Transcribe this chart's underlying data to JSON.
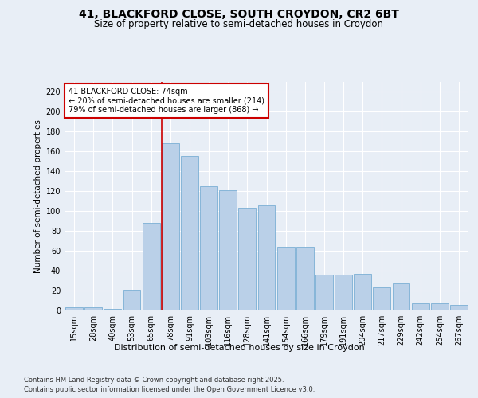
{
  "title1": "41, BLACKFORD CLOSE, SOUTH CROYDON, CR2 6BT",
  "title2": "Size of property relative to semi-detached houses in Croydon",
  "xlabel": "Distribution of semi-detached houses by size in Croydon",
  "ylabel": "Number of semi-detached properties",
  "categories": [
    "15sqm",
    "28sqm",
    "40sqm",
    "53sqm",
    "65sqm",
    "78sqm",
    "91sqm",
    "103sqm",
    "116sqm",
    "128sqm",
    "141sqm",
    "154sqm",
    "166sqm",
    "179sqm",
    "191sqm",
    "204sqm",
    "217sqm",
    "229sqm",
    "242sqm",
    "254sqm",
    "267sqm"
  ],
  "values": [
    3,
    3,
    2,
    21,
    88,
    168,
    155,
    125,
    121,
    103,
    106,
    64,
    64,
    36,
    36,
    37,
    23,
    27,
    7,
    7,
    6
  ],
  "bar_color": "#bad0e8",
  "bar_edge_color": "#7aafd4",
  "red_line_index": 5,
  "annotation_title": "41 BLACKFORD CLOSE: 74sqm",
  "annotation_line1": "← 20% of semi-detached houses are smaller (214)",
  "annotation_line2": "79% of semi-detached houses are larger (868) →",
  "annotation_box_color": "#ffffff",
  "annotation_box_edge_color": "#cc0000",
  "red_line_color": "#cc0000",
  "ylim": [
    0,
    230
  ],
  "yticks": [
    0,
    20,
    40,
    60,
    80,
    100,
    120,
    140,
    160,
    180,
    200,
    220
  ],
  "footer1": "Contains HM Land Registry data © Crown copyright and database right 2025.",
  "footer2": "Contains public sector information licensed under the Open Government Licence v3.0.",
  "bg_color": "#e8eef6",
  "plot_bg_color": "#e8eef6"
}
